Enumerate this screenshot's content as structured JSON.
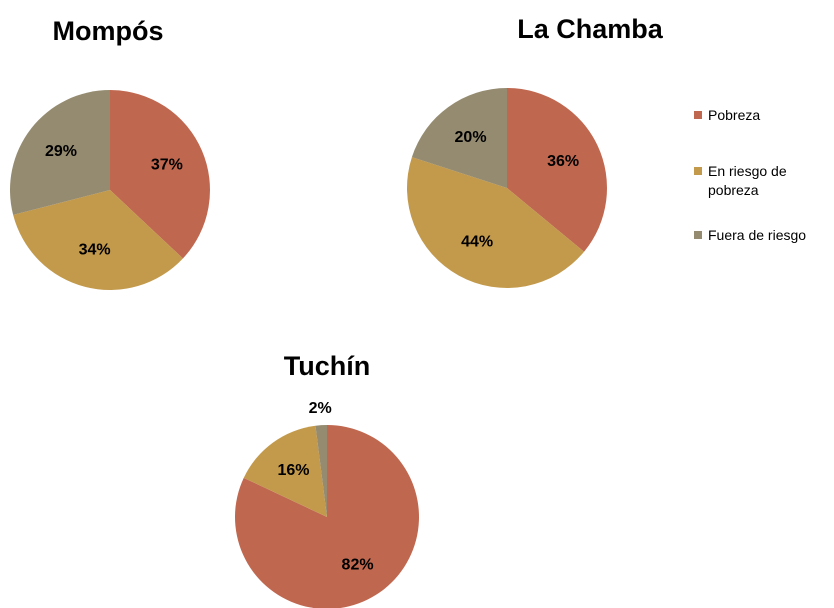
{
  "chart_data": [
    {
      "type": "pie",
      "title": "Mompós",
      "categories": [
        "Pobreza",
        "En riesgo de pobreza",
        "Fuera de riesgo"
      ],
      "values": [
        37,
        34,
        29
      ],
      "value_labels": [
        "37%",
        "34%",
        "29%"
      ],
      "colors": [
        "#c0674f",
        "#c39a4c",
        "#958b70"
      ]
    },
    {
      "type": "pie",
      "title": "La Chamba",
      "categories": [
        "Pobreza",
        "En riesgo de pobreza",
        "Fuera de riesgo"
      ],
      "values": [
        36,
        44,
        20
      ],
      "value_labels": [
        "36%",
        "44%",
        "20%"
      ],
      "colors": [
        "#c0674f",
        "#c39a4c",
        "#958b70"
      ]
    },
    {
      "type": "pie",
      "title": "Tuchín",
      "categories": [
        "Pobreza",
        "En riesgo de pobreza",
        "Fuera de riesgo"
      ],
      "values": [
        82,
        16,
        2
      ],
      "value_labels": [
        "82%",
        "16%",
        "2%"
      ],
      "colors": [
        "#c0674f",
        "#c39a4c",
        "#958b70"
      ]
    }
  ]
}
